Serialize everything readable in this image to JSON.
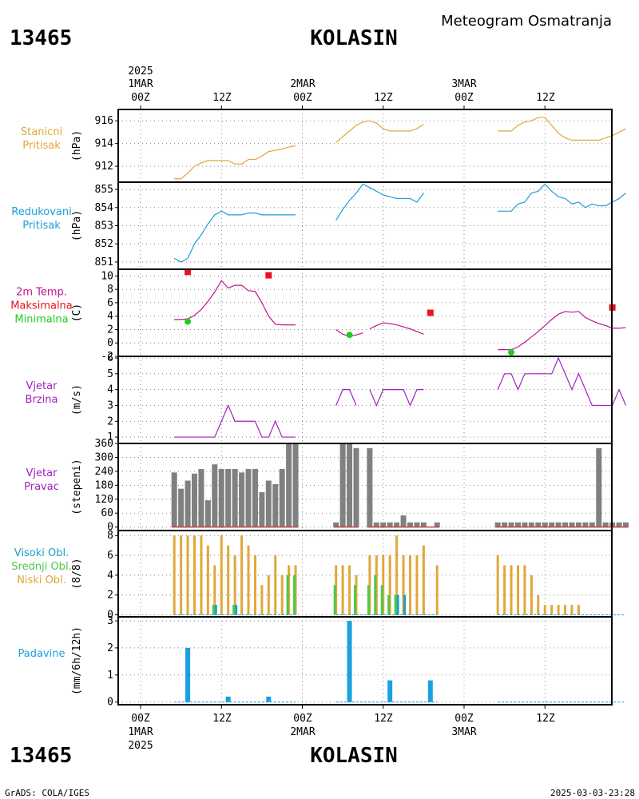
{
  "header": {
    "station_id": "13465",
    "station_name": "KOLASIN",
    "product": "Meteogram Osmatranja",
    "year": "2025"
  },
  "footer": {
    "station_id": "13465",
    "station_name": "KOLASIN",
    "credit": "GrADS: COLA/IGES",
    "timestamp": "2025-03-03-23:28"
  },
  "time_axis": {
    "top_dates": [
      "1MAR",
      "2MAR",
      "3MAR"
    ],
    "tick_labels": [
      "00Z",
      "12Z",
      "00Z",
      "12Z",
      "00Z",
      "12Z"
    ],
    "bottom_dates": [
      "1MAR",
      "2MAR",
      "3MAR"
    ],
    "bottom_year": "2025"
  },
  "colors": {
    "station_pressure": "#e0a83a",
    "reduced_pressure": "#1a9fd6",
    "temperature": "#c0148c",
    "tmax_marker": "#e8131c",
    "tmin_marker": "#1fcc1f",
    "wind": "#a020c0",
    "wind_dir_bar": "#808080",
    "wind_dir_base": "#c84040",
    "cloud_low": "#e0a83a",
    "cloud_mid": "#4cc84c",
    "cloud_high": "#1aa0c8",
    "precip": "#1aa0e0"
  },
  "chart_data": [
    {
      "type": "line",
      "panel": "station_pressure",
      "label_lines": [
        "Stanicni",
        "Pritisak"
      ],
      "unit": "(hPa)",
      "yticks": [
        "916",
        "914",
        "912"
      ],
      "ylim": [
        910.6,
        917.0
      ],
      "series": [
        {
          "x": [
            5,
            6,
            7,
            8,
            9,
            10,
            11,
            12,
            13,
            14,
            15,
            16,
            17,
            18,
            19,
            20,
            21,
            22,
            23
          ],
          "values": [
            910.9,
            910.9,
            911.4,
            912.0,
            912.3,
            912.5,
            912.5,
            912.5,
            912.5,
            912.2,
            912.2,
            912.6,
            912.6,
            912.9,
            913.3,
            913.4,
            913.5,
            913.7,
            913.8
          ]
        },
        {
          "x": [
            29,
            30,
            31,
            32,
            33,
            34,
            35,
            36,
            37,
            38,
            39,
            40,
            41,
            42
          ],
          "values": [
            914.1,
            914.6,
            915.1,
            915.6,
            915.9,
            916.0,
            915.8,
            915.3,
            915.1,
            915.1,
            915.1,
            915.1,
            915.3,
            915.7
          ]
        },
        {
          "x": [
            53,
            54,
            55,
            56,
            57,
            58,
            59,
            60,
            61,
            62,
            63,
            64,
            65,
            66,
            67,
            68,
            69,
            70,
            71,
            72
          ],
          "values": [
            915.1,
            915.1,
            915.1,
            915.6,
            915.9,
            916.0,
            916.3,
            916.3,
            915.6,
            914.9,
            914.5,
            914.3,
            914.3,
            914.3,
            914.3,
            914.3,
            914.5,
            914.7,
            915.0,
            915.3
          ]
        }
      ]
    },
    {
      "type": "line",
      "panel": "reduced_pressure",
      "label_lines": [
        "Redukovani",
        "Pritisak"
      ],
      "unit": "(hPa)",
      "yticks": [
        "855",
        "854",
        "853",
        "852",
        "851"
      ],
      "ylim": [
        850.6,
        855.4
      ],
      "series": [
        {
          "x": [
            5,
            6,
            7,
            8,
            9,
            10,
            11,
            12,
            13,
            14,
            15,
            16,
            17,
            18,
            19,
            20,
            21,
            22,
            23
          ],
          "values": [
            851.2,
            851.0,
            851.2,
            852.0,
            852.5,
            853.1,
            853.6,
            853.8,
            853.6,
            853.6,
            853.6,
            853.7,
            853.7,
            853.6,
            853.6,
            853.6,
            853.6,
            853.6,
            853.6
          ]
        },
        {
          "x": [
            29,
            30,
            31,
            32,
            33,
            34,
            35,
            36,
            37,
            38,
            39,
            40,
            41,
            42
          ],
          "values": [
            853.3,
            853.9,
            854.4,
            854.8,
            855.3,
            855.1,
            854.9,
            854.7,
            854.6,
            854.5,
            854.5,
            854.5,
            854.3,
            854.8
          ]
        },
        {
          "x": [
            53,
            54,
            55,
            56,
            57,
            58,
            59,
            60,
            61,
            62,
            63,
            64,
            65,
            66,
            67,
            68,
            69,
            70,
            71,
            72
          ],
          "values": [
            853.8,
            853.8,
            853.8,
            854.2,
            854.3,
            854.8,
            854.9,
            855.3,
            854.9,
            854.6,
            854.5,
            854.2,
            854.3,
            854.0,
            854.2,
            854.1,
            854.1,
            854.3,
            854.5,
            854.8
          ]
        }
      ]
    },
    {
      "type": "line",
      "panel": "temperature",
      "label_lines": [
        "2m Temp.",
        "Maksimalna",
        "Minimalna"
      ],
      "unit": "(C)",
      "yticks": [
        "10",
        "8",
        "6",
        "4",
        "2",
        "0",
        "-2"
      ],
      "ylim": [
        -2.0,
        11.0
      ],
      "series": [
        {
          "x": [
            5,
            6,
            7,
            8,
            9,
            10,
            11,
            12,
            13,
            14,
            15,
            16,
            17,
            18,
            19,
            20,
            21,
            22,
            23
          ],
          "values": [
            3.5,
            3.5,
            3.6,
            4.1,
            5.0,
            6.2,
            7.6,
            9.3,
            8.2,
            8.6,
            8.6,
            7.8,
            7.7,
            6.0,
            4.0,
            2.8,
            2.7,
            2.7,
            2.7
          ]
        },
        {
          "x": [
            29,
            30,
            31,
            32,
            33
          ],
          "values": [
            2.0,
            1.3,
            1.0,
            1.2,
            1.5
          ]
        },
        {
          "x": [
            34,
            35,
            36,
            37,
            38,
            39,
            40,
            41,
            42
          ],
          "values": [
            2.1,
            2.6,
            3.0,
            2.9,
            2.7,
            2.4,
            2.1,
            1.7,
            1.3
          ]
        },
        {
          "x": [
            53,
            54,
            55,
            56,
            57,
            58,
            59,
            60,
            61,
            62,
            63,
            64,
            65,
            66,
            67,
            68,
            69,
            70,
            71,
            72
          ],
          "values": [
            -1.0,
            -1.0,
            -1.0,
            -0.6,
            0.1,
            0.9,
            1.7,
            2.6,
            3.5,
            4.3,
            4.7,
            4.6,
            4.7,
            3.8,
            3.3,
            2.9,
            2.6,
            2.2,
            2.2,
            2.3
          ]
        }
      ],
      "tmax": [
        {
          "x": 7,
          "value": 10.6
        },
        {
          "x": 19,
          "value": 10.1
        },
        {
          "x": 43,
          "value": 4.5
        },
        {
          "x": 70,
          "value": 5.3
        }
      ],
      "tmin": [
        {
          "x": 7,
          "value": 3.2
        },
        {
          "x": 31,
          "value": 1.2
        },
        {
          "x": 55,
          "value": -1.4
        }
      ]
    },
    {
      "type": "line",
      "panel": "wind_speed",
      "label_lines": [
        "Vjetar",
        "Brzina"
      ],
      "unit": "(m/s)",
      "yticks": [
        "6",
        "5",
        "4",
        "3",
        "2",
        "1"
      ],
      "ylim": [
        0.6,
        6.1
      ],
      "series": [
        {
          "x": [
            5,
            6,
            7,
            8,
            9,
            10,
            11,
            12,
            13,
            14,
            15,
            16,
            17,
            18,
            19,
            20,
            21,
            22,
            23
          ],
          "values": [
            1,
            1,
            1,
            1,
            1,
            1,
            1,
            2,
            3,
            2,
            2,
            2,
            2,
            1,
            1,
            2,
            1,
            1,
            1
          ]
        },
        {
          "x": [
            29,
            30,
            31,
            32
          ],
          "values": [
            3,
            4,
            4,
            3
          ]
        },
        {
          "x": [
            34,
            35,
            36,
            37,
            38,
            39,
            40,
            41,
            42
          ],
          "values": [
            4,
            3,
            4,
            4,
            4,
            4,
            3,
            4,
            4
          ]
        },
        {
          "x": [
            53,
            54,
            55,
            56,
            57,
            58,
            59,
            60,
            61,
            62,
            63,
            64,
            65,
            66,
            67,
            68,
            69,
            70,
            71,
            72
          ],
          "values": [
            4,
            5,
            5,
            4,
            5,
            5,
            5,
            5,
            5,
            6,
            5,
            4,
            5,
            4,
            3,
            3,
            3,
            3,
            4,
            3
          ]
        }
      ]
    },
    {
      "type": "bar",
      "panel": "wind_direction",
      "label_lines": [
        "Vjetar",
        "Pravac"
      ],
      "unit": "(stepeni)",
      "yticks": [
        "360",
        "300",
        "240",
        "180",
        "120",
        "60",
        "0"
      ],
      "ylim": [
        -15,
        360
      ],
      "x": [
        5,
        6,
        7,
        8,
        9,
        10,
        11,
        12,
        13,
        14,
        15,
        16,
        17,
        18,
        19,
        20,
        21,
        22,
        23,
        29,
        30,
        31,
        32,
        34,
        35,
        36,
        37,
        38,
        39,
        40,
        41,
        42,
        44,
        53,
        54,
        55,
        56,
        57,
        58,
        59,
        60,
        61,
        62,
        63,
        64,
        65,
        66,
        67,
        68,
        69,
        70,
        71,
        72
      ],
      "values": [
        235,
        165,
        200,
        230,
        250,
        115,
        270,
        250,
        250,
        250,
        235,
        250,
        250,
        150,
        200,
        185,
        250,
        360,
        360,
        20,
        360,
        360,
        340,
        340,
        20,
        20,
        20,
        20,
        50,
        20,
        20,
        20,
        20,
        20,
        20,
        20,
        20,
        20,
        20,
        20,
        20,
        20,
        20,
        20,
        20,
        20,
        20,
        20,
        340,
        20,
        20,
        20,
        20
      ]
    },
    {
      "type": "bar",
      "panel": "clouds",
      "label_lines": [
        "Visoki Obl.",
        "Srednji Obl.",
        "Niski Obl."
      ],
      "unit": "(8/8)",
      "yticks": [
        "8",
        "6",
        "4",
        "2",
        "0"
      ],
      "ylim": [
        -0.2,
        8.5
      ],
      "x": [
        5,
        6,
        7,
        8,
        9,
        10,
        11,
        12,
        13,
        14,
        15,
        16,
        17,
        18,
        19,
        20,
        21,
        22,
        23,
        29,
        30,
        31,
        32,
        34,
        35,
        36,
        37,
        38,
        39,
        40,
        41,
        42,
        44,
        53,
        54,
        55,
        56,
        57,
        58,
        59,
        60,
        61,
        62,
        63,
        64,
        65,
        66,
        67,
        68,
        69,
        70,
        71,
        72
      ],
      "series": [
        {
          "name": "Niski Obl.",
          "values": [
            8,
            8,
            8,
            8,
            8,
            7,
            5,
            8,
            7,
            6,
            8,
            7,
            6,
            3,
            4,
            6,
            4,
            5,
            5,
            5,
            5,
            5,
            4,
            6,
            6,
            6,
            6,
            8,
            6,
            6,
            6,
            7,
            5,
            6,
            5,
            5,
            5,
            5,
            4,
            2,
            1,
            1,
            1,
            1,
            1,
            1,
            0,
            0,
            0,
            0,
            0,
            0,
            0
          ]
        },
        {
          "name": "Srednji Obl.",
          "values": [
            0,
            0,
            0,
            0,
            0,
            0,
            1,
            0,
            0,
            1,
            0,
            0,
            0,
            0,
            0,
            0,
            0,
            4,
            4,
            3,
            0,
            0,
            3,
            3,
            4,
            3,
            2,
            2,
            0,
            0,
            0,
            0,
            0,
            0,
            0,
            0,
            0,
            0,
            0,
            0,
            0,
            0,
            0,
            0,
            0,
            0,
            0,
            0,
            0,
            0,
            0,
            0,
            0
          ]
        },
        {
          "name": "Visoki Obl.",
          "values": [
            0,
            0,
            0,
            0,
            0,
            0,
            1,
            0,
            0,
            1,
            0,
            0,
            0,
            0,
            0,
            0,
            0,
            0,
            0,
            0,
            0,
            0,
            0,
            0,
            0,
            0,
            0,
            2,
            2,
            0,
            0,
            0,
            0,
            0,
            0,
            0,
            0,
            0,
            0,
            0,
            0,
            0,
            0,
            0,
            0,
            0,
            0,
            0,
            0,
            0,
            0,
            0,
            0
          ]
        }
      ]
    },
    {
      "type": "bar",
      "panel": "precipitation",
      "label_lines": [
        "Padavine"
      ],
      "unit": "(mm/6h/12h)",
      "yticks": [
        "3",
        "2",
        "1",
        "0"
      ],
      "ylim": [
        -0.1,
        3.15
      ],
      "x": [
        7,
        13,
        19,
        31,
        37,
        43
      ],
      "values": [
        2.0,
        0.2,
        0.2,
        3.0,
        0.8,
        0.8
      ]
    }
  ]
}
